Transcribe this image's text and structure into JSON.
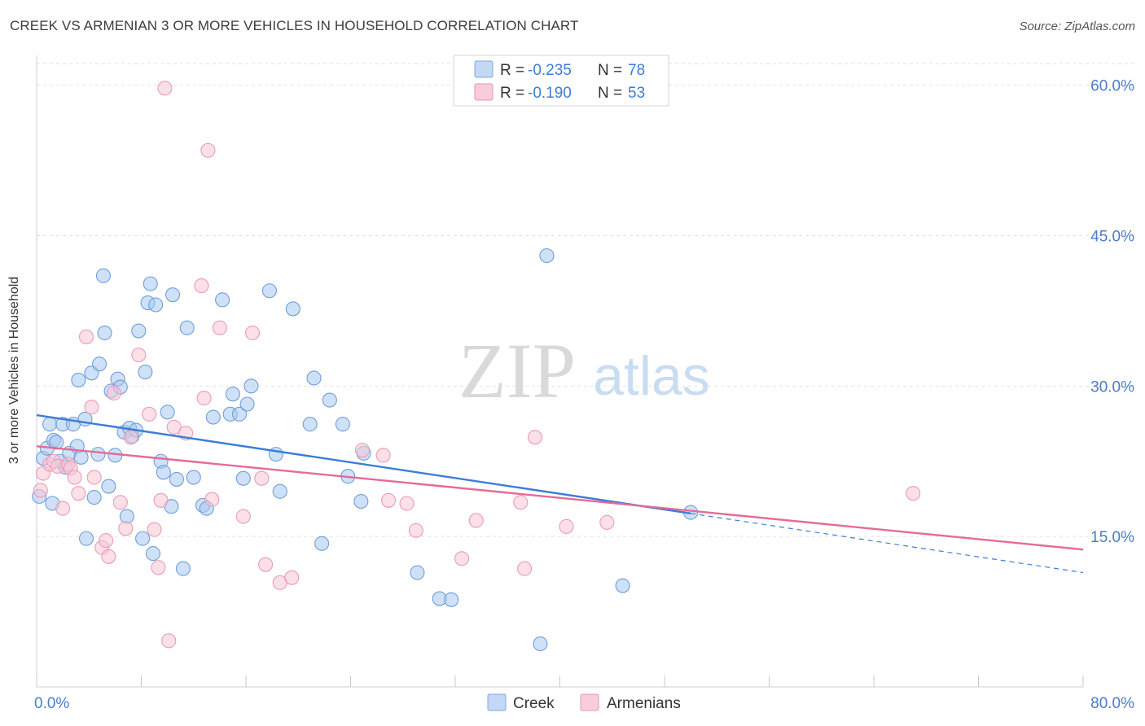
{
  "header": {
    "title": "CREEK VS ARMENIAN 3 OR MORE VEHICLES IN HOUSEHOLD CORRELATION CHART",
    "source": "Source: ZipAtlas.com"
  },
  "watermark": {
    "zip": "ZIP",
    "atlas": "atlas"
  },
  "legend_top": [
    {
      "r_label": "R =",
      "r_value": "-0.235",
      "n_label": "N =",
      "n_value": "78",
      "color": "#a8c8f0"
    },
    {
      "r_label": "R =",
      "r_value": "-0.190",
      "n_label": "N =",
      "n_value": "53",
      "color": "#f5b8cb"
    }
  ],
  "legend_bottom": [
    {
      "name": "Creek",
      "color": "#a8c8f0"
    },
    {
      "name": "Armenians",
      "color": "#f5b8cb"
    }
  ],
  "chart_data": {
    "type": "scatter",
    "title": "CREEK VS ARMENIAN 3 OR MORE VEHICLES IN HOUSEHOLD CORRELATION CHART",
    "xlabel": "",
    "ylabel": "3 or more Vehicles in Household",
    "xlim": [
      0,
      80
    ],
    "ylim": [
      0,
      62
    ],
    "x_tick_labels": [
      "0.0%",
      "80.0%"
    ],
    "y_ticks": [
      15,
      30,
      45,
      60
    ],
    "y_tick_labels": [
      "15.0%",
      "30.0%",
      "45.0%",
      "60.0%"
    ],
    "grid": true,
    "colors": {
      "Creek": "#3b7dd8",
      "Armenians": "#e66a97",
      "tick_label": "#4a7cc9"
    },
    "series": [
      {
        "name": "Creek",
        "trend": {
          "x": [
            0,
            50
          ],
          "y": [
            27.1,
            17.3
          ],
          "dashed_extension": {
            "x": [
              50,
              80
            ],
            "y": [
              17.3,
              11.4
            ]
          }
        },
        "points": [
          [
            0.2,
            19.0
          ],
          [
            0.5,
            22.8
          ],
          [
            0.8,
            23.8
          ],
          [
            1.0,
            26.2
          ],
          [
            1.2,
            18.3
          ],
          [
            1.3,
            24.6
          ],
          [
            1.5,
            24.4
          ],
          [
            1.8,
            22.5
          ],
          [
            2.0,
            26.2
          ],
          [
            2.2,
            21.9
          ],
          [
            2.5,
            23.3
          ],
          [
            2.8,
            26.2
          ],
          [
            3.1,
            24.0
          ],
          [
            3.2,
            30.6
          ],
          [
            3.4,
            22.9
          ],
          [
            3.7,
            26.7
          ],
          [
            3.8,
            14.8
          ],
          [
            4.2,
            31.3
          ],
          [
            4.4,
            18.9
          ],
          [
            4.7,
            23.2
          ],
          [
            4.8,
            32.2
          ],
          [
            5.1,
            41.0
          ],
          [
            5.2,
            35.3
          ],
          [
            5.5,
            20.0
          ],
          [
            5.7,
            29.5
          ],
          [
            6.0,
            23.1
          ],
          [
            6.2,
            30.7
          ],
          [
            6.4,
            29.9
          ],
          [
            6.7,
            25.4
          ],
          [
            6.9,
            17.0
          ],
          [
            7.1,
            25.8
          ],
          [
            7.3,
            25.0
          ],
          [
            7.6,
            25.6
          ],
          [
            7.8,
            35.5
          ],
          [
            8.1,
            14.8
          ],
          [
            8.3,
            31.4
          ],
          [
            8.5,
            38.3
          ],
          [
            8.7,
            40.2
          ],
          [
            8.9,
            13.3
          ],
          [
            9.1,
            38.1
          ],
          [
            9.5,
            22.5
          ],
          [
            9.7,
            21.4
          ],
          [
            10.0,
            27.4
          ],
          [
            10.3,
            18.0
          ],
          [
            10.4,
            39.1
          ],
          [
            10.7,
            20.7
          ],
          [
            11.2,
            11.8
          ],
          [
            11.5,
            35.8
          ],
          [
            12.0,
            20.9
          ],
          [
            12.7,
            18.1
          ],
          [
            13.0,
            17.8
          ],
          [
            13.5,
            26.9
          ],
          [
            14.2,
            38.6
          ],
          [
            14.8,
            27.2
          ],
          [
            15.0,
            29.2
          ],
          [
            15.5,
            27.2
          ],
          [
            15.8,
            20.8
          ],
          [
            16.1,
            28.2
          ],
          [
            16.4,
            30.0
          ],
          [
            17.8,
            39.5
          ],
          [
            18.3,
            23.2
          ],
          [
            18.6,
            19.5
          ],
          [
            19.6,
            37.7
          ],
          [
            20.9,
            26.2
          ],
          [
            21.2,
            30.8
          ],
          [
            21.8,
            14.3
          ],
          [
            22.4,
            28.6
          ],
          [
            23.4,
            26.2
          ],
          [
            23.8,
            21.0
          ],
          [
            24.8,
            18.5
          ],
          [
            25.0,
            23.3
          ],
          [
            29.1,
            11.4
          ],
          [
            30.8,
            8.8
          ],
          [
            31.7,
            8.7
          ],
          [
            38.5,
            4.3
          ],
          [
            39.0,
            43.0
          ],
          [
            44.8,
            10.1
          ],
          [
            50.0,
            17.4
          ]
        ]
      },
      {
        "name": "Armenians",
        "trend": {
          "x": [
            0,
            80
          ],
          "y": [
            24.0,
            13.7
          ]
        },
        "points": [
          [
            0.3,
            19.6
          ],
          [
            0.5,
            21.3
          ],
          [
            1.0,
            22.2
          ],
          [
            1.3,
            22.5
          ],
          [
            1.6,
            22.0
          ],
          [
            2.0,
            17.8
          ],
          [
            2.4,
            22.2
          ],
          [
            2.6,
            21.8
          ],
          [
            2.9,
            20.9
          ],
          [
            3.2,
            19.3
          ],
          [
            3.8,
            34.9
          ],
          [
            4.2,
            27.9
          ],
          [
            4.4,
            20.9
          ],
          [
            5.0,
            13.9
          ],
          [
            5.3,
            14.6
          ],
          [
            5.5,
            13.0
          ],
          [
            5.9,
            29.3
          ],
          [
            6.4,
            18.4
          ],
          [
            6.8,
            15.8
          ],
          [
            7.2,
            24.9
          ],
          [
            7.8,
            33.1
          ],
          [
            8.6,
            27.2
          ],
          [
            9.3,
            11.9
          ],
          [
            9.5,
            18.6
          ],
          [
            10.1,
            4.6
          ],
          [
            10.5,
            25.9
          ],
          [
            11.4,
            25.3
          ],
          [
            12.6,
            40.0
          ],
          [
            12.8,
            28.8
          ],
          [
            13.4,
            18.7
          ],
          [
            14.0,
            35.8
          ],
          [
            15.8,
            17.0
          ],
          [
            16.5,
            35.3
          ],
          [
            17.2,
            20.8
          ],
          [
            17.5,
            12.2
          ],
          [
            18.6,
            10.4
          ],
          [
            19.5,
            10.9
          ],
          [
            24.9,
            23.6
          ],
          [
            26.5,
            23.1
          ],
          [
            26.9,
            18.6
          ],
          [
            28.3,
            18.3
          ],
          [
            29.0,
            15.6
          ],
          [
            32.5,
            12.8
          ],
          [
            33.6,
            16.6
          ],
          [
            37.0,
            18.4
          ],
          [
            37.3,
            11.8
          ],
          [
            38.1,
            24.9
          ],
          [
            40.5,
            16.0
          ],
          [
            43.6,
            16.4
          ],
          [
            67.0,
            19.3
          ],
          [
            9.8,
            59.7
          ],
          [
            13.1,
            53.5
          ],
          [
            9.0,
            15.7
          ]
        ]
      }
    ]
  }
}
